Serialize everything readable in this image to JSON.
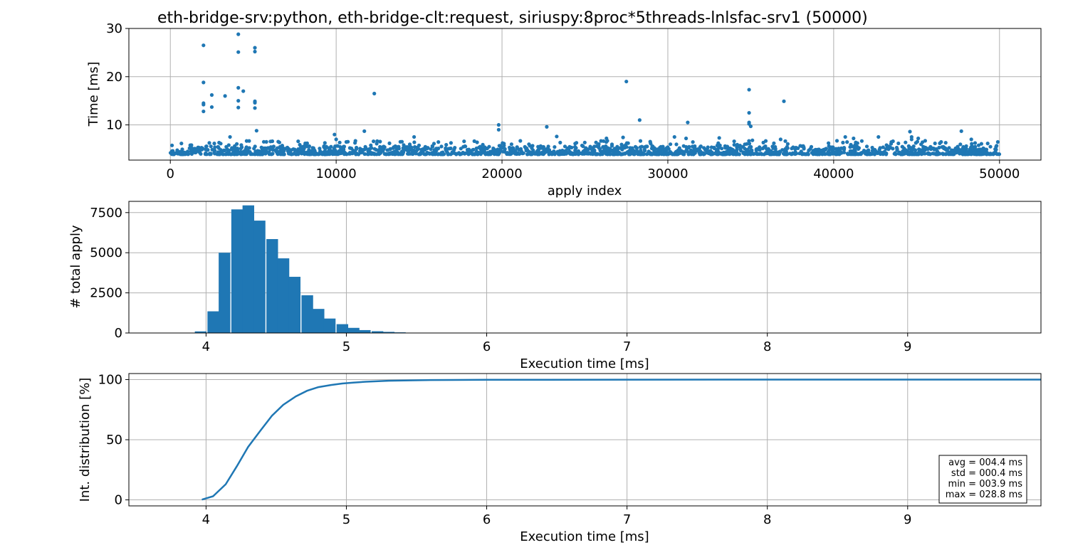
{
  "colors": {
    "series": "#1f77b4",
    "grid": "#b0b0b0",
    "axes": "#000000"
  },
  "chart_data": [
    {
      "type": "scatter",
      "title": "eth-bridge-srv:python, eth-bridge-clt:request, siriuspy:8proc*5threads-lnlsfac-srv1 (50000)",
      "xlabel": "apply index",
      "ylabel": "Time [ms]",
      "xlim": [
        -2500,
        52500
      ],
      "ylim": [
        2.7,
        30
      ],
      "xticks": [
        0,
        10000,
        20000,
        30000,
        40000,
        50000
      ],
      "yticks": [
        10,
        20,
        30
      ],
      "grid": true,
      "band": {
        "x_range": [
          0,
          50000
        ],
        "y_range": [
          3.9,
          5.6
        ],
        "note": "dense cluster of most points"
      },
      "outliers": [
        [
          2000,
          26.5
        ],
        [
          2000,
          18.8
        ],
        [
          2000,
          14.5
        ],
        [
          2000,
          14.2
        ],
        [
          2000,
          12.8
        ],
        [
          2500,
          16.2
        ],
        [
          2500,
          13.7
        ],
        [
          3300,
          16.0
        ],
        [
          3600,
          7.5
        ],
        [
          4100,
          28.8
        ],
        [
          4100,
          25.1
        ],
        [
          4100,
          17.7
        ],
        [
          4100,
          15.0
        ],
        [
          4100,
          13.6
        ],
        [
          4400,
          17.0
        ],
        [
          5100,
          26.0
        ],
        [
          5100,
          25.2
        ],
        [
          5100,
          14.9
        ],
        [
          5100,
          14.6
        ],
        [
          5100,
          13.5
        ],
        [
          5200,
          8.8
        ],
        [
          9900,
          8.0
        ],
        [
          10000,
          7.0
        ],
        [
          11700,
          8.7
        ],
        [
          12300,
          16.5
        ],
        [
          14700,
          7.5
        ],
        [
          19800,
          10.0
        ],
        [
          19800,
          9.0
        ],
        [
          22700,
          9.6
        ],
        [
          23300,
          7.6
        ],
        [
          26300,
          7.2
        ],
        [
          27300,
          7.4
        ],
        [
          27500,
          19.0
        ],
        [
          28300,
          11.0
        ],
        [
          30400,
          7.5
        ],
        [
          31100,
          7.2
        ],
        [
          31200,
          10.5
        ],
        [
          33100,
          7.3
        ],
        [
          34000,
          6.6
        ],
        [
          34900,
          17.3
        ],
        [
          34900,
          12.5
        ],
        [
          34900,
          10.5
        ],
        [
          34900,
          10.2
        ],
        [
          35000,
          9.7
        ],
        [
          35100,
          6.8
        ],
        [
          36800,
          7.0
        ],
        [
          37000,
          14.9
        ],
        [
          40700,
          7.5
        ],
        [
          41200,
          7.2
        ],
        [
          42700,
          7.5
        ],
        [
          44600,
          8.6
        ],
        [
          44700,
          7.5
        ],
        [
          44700,
          7.0
        ],
        [
          45100,
          7.2
        ],
        [
          47700,
          8.7
        ],
        [
          48300,
          7.0
        ]
      ]
    },
    {
      "type": "bar",
      "xlabel": "Execution time [ms]",
      "ylabel": "# total apply",
      "xlim": [
        3.45,
        9.95
      ],
      "ylim": [
        0,
        8200
      ],
      "xticks": [
        4,
        5,
        6,
        7,
        8,
        9
      ],
      "yticks": [
        0,
        2500,
        5000,
        7500
      ],
      "grid": true,
      "bin_width": 0.083,
      "bins": [
        [
          3.92,
          100
        ],
        [
          4.01,
          1350
        ],
        [
          4.09,
          5000
        ],
        [
          4.18,
          7700
        ],
        [
          4.26,
          7950
        ],
        [
          4.34,
          7000
        ],
        [
          4.43,
          5850
        ],
        [
          4.51,
          4650
        ],
        [
          4.59,
          3500
        ],
        [
          4.68,
          2350
        ],
        [
          4.76,
          1500
        ],
        [
          4.84,
          900
        ],
        [
          4.93,
          550
        ],
        [
          5.01,
          320
        ],
        [
          5.09,
          180
        ],
        [
          5.18,
          110
        ],
        [
          5.26,
          70
        ],
        [
          5.34,
          40
        ],
        [
          5.43,
          20
        ],
        [
          5.51,
          15
        ],
        [
          5.59,
          10
        ]
      ]
    },
    {
      "type": "line",
      "xlabel": "Execution time [ms]",
      "ylabel": "Int. distribution [%]",
      "xlim": [
        3.45,
        9.95
      ],
      "ylim": [
        -5,
        105
      ],
      "xticks": [
        4,
        5,
        6,
        7,
        8,
        9
      ],
      "yticks": [
        0,
        50,
        100
      ],
      "grid": true,
      "x": [
        3.97,
        4.05,
        4.14,
        4.22,
        4.3,
        4.39,
        4.47,
        4.55,
        4.64,
        4.72,
        4.8,
        4.89,
        4.97,
        5.05,
        5.14,
        5.3,
        5.6,
        6.0,
        7.0,
        8.0,
        9.0,
        9.95
      ],
      "values": [
        0.2,
        3,
        13,
        28,
        44,
        58,
        70,
        79,
        86,
        90.7,
        93.7,
        95.5,
        96.7,
        97.5,
        98.2,
        99.0,
        99.6,
        99.8,
        99.9,
        99.95,
        100,
        100
      ],
      "stats": [
        "avg = 004.4 ms",
        "std = 000.4 ms",
        "min = 003.9 ms",
        "max = 028.8 ms"
      ]
    }
  ]
}
